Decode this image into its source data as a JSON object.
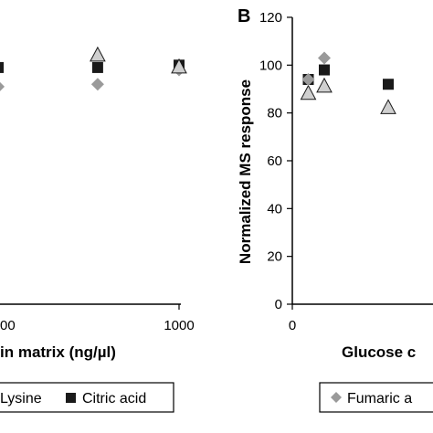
{
  "chart_data": [
    {
      "type": "scatter",
      "panel_label": "",
      "xlabel": "in matrix (ng/µl)",
      "ylabel": "",
      "x_ticks": [
        "00",
        "1000"
      ],
      "y_ticks": [],
      "series": [
        {
          "name": "Lysine",
          "marker": "diamond",
          "color": "#9a9a9a",
          "x": [
            0,
            550,
            1000
          ],
          "y": [
            91,
            92,
            98
          ]
        },
        {
          "name": "Citric acid",
          "marker": "square",
          "color": "#1a1a1a",
          "x": [
            0,
            550,
            1000
          ],
          "y": [
            99,
            99,
            100
          ]
        },
        {
          "name": "",
          "marker": "triangle",
          "color": "#cfcfcf",
          "x": [
            550,
            1000
          ],
          "y": [
            104,
            99
          ]
        }
      ],
      "legend": {
        "placement": "bottom",
        "items": [
          "Lysine",
          "Citric acid"
        ]
      }
    },
    {
      "type": "scatter",
      "panel_label": "B",
      "xlabel": "Glucose c",
      "ylabel": "Normalized MS response",
      "x_ticks": [
        "0"
      ],
      "y_ticks": [
        "0",
        "20",
        "40",
        "60",
        "80",
        "100",
        "120"
      ],
      "ylim": [
        0,
        120
      ],
      "series": [
        {
          "name": "Fumaric a",
          "marker": "diamond",
          "color": "#9a9a9a",
          "x": [
            0.5,
            1.0
          ],
          "y": [
            94,
            103
          ]
        },
        {
          "name": "",
          "marker": "square",
          "color": "#1a1a1a",
          "x": [
            0.5,
            1.0,
            3.0
          ],
          "y": [
            94,
            98,
            92
          ]
        },
        {
          "name": "",
          "marker": "triangle",
          "color": "#cfcfcf",
          "x": [
            0.5,
            1.0,
            3.0
          ],
          "y": [
            88,
            91,
            82
          ]
        }
      ],
      "legend": {
        "placement": "bottom",
        "items": [
          "Fumaric a"
        ]
      }
    }
  ]
}
